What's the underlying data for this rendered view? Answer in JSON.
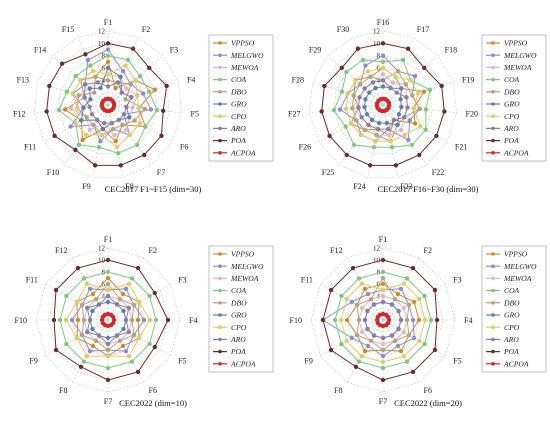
{
  "algorithms": [
    {
      "name": "VPPSO",
      "color": "#c98c34"
    },
    {
      "name": "MELGWO",
      "color": "#8c8cd2"
    },
    {
      "name": "MEWOA",
      "color": "#e4b4c9"
    },
    {
      "name": "COA",
      "color": "#7fc97f"
    },
    {
      "name": "DBO",
      "color": "#b6a27c"
    },
    {
      "name": "GRO",
      "color": "#5f7fae"
    },
    {
      "name": "CPO",
      "color": "#e0cb6c"
    },
    {
      "name": "ARO",
      "color": "#8a7fa3"
    },
    {
      "name": "POA",
      "color": "#6b2c2c"
    },
    {
      "name": "ACPOA",
      "color": "#d62727"
    }
  ],
  "chart_data": [
    {
      "type": "radar",
      "caption": "CEC2017 F1~F15 (dim=30)",
      "axes": [
        "F1",
        "F2",
        "F3",
        "F4",
        "F5",
        "F6",
        "F7",
        "F8",
        "F9",
        "F10",
        "F11",
        "F12",
        "F13",
        "F14",
        "F15"
      ],
      "rlim": [
        0,
        12
      ],
      "ticks": [
        2,
        4,
        6,
        8,
        10,
        12
      ],
      "tick_labels": [
        "",
        "4",
        "6",
        "8",
        "10",
        "12"
      ],
      "legend_position": "right",
      "series": [
        {
          "name": "VPPSO",
          "values": [
            7,
            3,
            6,
            8,
            5,
            7,
            4,
            6,
            4,
            7,
            5,
            7,
            4,
            6,
            5
          ]
        },
        {
          "name": "MELGWO",
          "values": [
            9,
            6,
            5,
            6,
            7,
            3,
            6,
            4,
            6,
            4,
            7,
            4,
            6,
            5,
            8
          ]
        },
        {
          "name": "MEWOA",
          "values": [
            5,
            5,
            4,
            5,
            4,
            4,
            5,
            5,
            3,
            5,
            4,
            6,
            5,
            4,
            4
          ]
        },
        {
          "name": "COA",
          "values": [
            8,
            8,
            7,
            7,
            8,
            7,
            8,
            8,
            7,
            8,
            6,
            8,
            7,
            7,
            7
          ]
        },
        {
          "name": "DBO",
          "values": [
            4,
            4,
            5,
            3,
            6,
            5,
            4,
            4,
            5,
            4,
            4,
            5,
            5,
            3,
            5
          ]
        },
        {
          "name": "GRO",
          "values": [
            6,
            5,
            3,
            4,
            3,
            4,
            3,
            3,
            4,
            3,
            5,
            4,
            3,
            4,
            3
          ]
        },
        {
          "name": "CPO",
          "values": [
            5,
            7,
            6,
            5,
            5,
            6,
            6,
            7,
            5,
            6,
            6,
            5,
            6,
            6,
            6
          ]
        },
        {
          "name": "ARO",
          "values": [
            3,
            4,
            3,
            4,
            3,
            3,
            3,
            3,
            3,
            3,
            3,
            3,
            4,
            5,
            4
          ]
        },
        {
          "name": "POA",
          "values": [
            10,
            10,
            9,
            10,
            9,
            10,
            10,
            10,
            10,
            9,
            10,
            10,
            10,
            10,
            9
          ]
        },
        {
          "name": "ACPOA",
          "values": [
            1,
            1,
            1,
            1,
            1,
            1,
            1,
            1,
            1,
            1,
            1,
            1,
            1,
            1,
            1
          ]
        }
      ]
    },
    {
      "type": "radar",
      "caption": "CEC2017 F16~F30 (dim=30)",
      "axes": [
        "F16",
        "F17",
        "F18",
        "F19",
        "F20",
        "F21",
        "F22",
        "F23",
        "F24",
        "F25",
        "F26",
        "F27",
        "F28",
        "F29",
        "F30"
      ],
      "rlim": [
        0,
        12
      ],
      "ticks": [
        2,
        4,
        6,
        8,
        10,
        12
      ],
      "tick_labels": [
        "",
        "4",
        "6",
        "8",
        "10",
        "12"
      ],
      "legend_position": "right",
      "series": [
        {
          "name": "VPPSO",
          "values": [
            6,
            5,
            4,
            7,
            5,
            6,
            3,
            5,
            4,
            5,
            6,
            4,
            5,
            6,
            5
          ]
        },
        {
          "name": "MELGWO",
          "values": [
            8,
            6,
            7,
            5,
            6,
            5,
            7,
            4,
            6,
            6,
            5,
            7,
            6,
            5,
            7
          ]
        },
        {
          "name": "MEWOA",
          "values": [
            5,
            4,
            5,
            4,
            4,
            4,
            5,
            5,
            5,
            4,
            4,
            5,
            4,
            4,
            4
          ]
        },
        {
          "name": "COA",
          "values": [
            7,
            8,
            6,
            8,
            7,
            8,
            8,
            7,
            7,
            8,
            7,
            8,
            7,
            8,
            8
          ]
        },
        {
          "name": "DBO",
          "values": [
            4,
            6,
            5,
            5,
            6,
            4,
            4,
            6,
            5,
            5,
            5,
            5,
            5,
            5,
            5
          ]
        },
        {
          "name": "GRO",
          "values": [
            3,
            3,
            4,
            3,
            3,
            3,
            4,
            3,
            3,
            3,
            3,
            3,
            3,
            3,
            3
          ]
        },
        {
          "name": "CPO",
          "values": [
            6,
            5,
            6,
            6,
            5,
            7,
            6,
            6,
            6,
            6,
            6,
            6,
            6,
            6,
            6
          ]
        },
        {
          "name": "ARO",
          "values": [
            4,
            3,
            3,
            4,
            4,
            4,
            3,
            4,
            4,
            4,
            4,
            4,
            4,
            4,
            4
          ]
        },
        {
          "name": "POA",
          "values": [
            10,
            10,
            9,
            10,
            10,
            10,
            10,
            10,
            10,
            10,
            10,
            10,
            10,
            9,
            10
          ]
        },
        {
          "name": "ACPOA",
          "values": [
            1,
            1,
            1,
            1,
            1,
            1,
            1,
            1,
            1,
            1,
            1,
            1,
            1,
            1,
            1
          ]
        }
      ]
    },
    {
      "type": "radar",
      "caption": "CEC2022 (dim=10)",
      "axes": [
        "F1",
        "F2",
        "F3",
        "F4",
        "F5",
        "F6",
        "F7",
        "F8",
        "F9",
        "F10",
        "F11",
        "F12"
      ],
      "rlim": [
        0,
        12
      ],
      "ticks": [
        2,
        4,
        6,
        8,
        10,
        12
      ],
      "tick_labels": [
        "",
        "4",
        "6",
        "8",
        "10",
        "12"
      ],
      "legend_position": "right",
      "series": [
        {
          "name": "VPPSO",
          "values": [
            7,
            5,
            6,
            5,
            6,
            5,
            6,
            5,
            6,
            5,
            6,
            5
          ]
        },
        {
          "name": "MELGWO",
          "values": [
            5,
            6,
            5,
            6,
            5,
            6,
            5,
            6,
            5,
            6,
            5,
            6
          ]
        },
        {
          "name": "MEWOA",
          "values": [
            4,
            4,
            4,
            4,
            4,
            4,
            4,
            4,
            4,
            4,
            4,
            4
          ]
        },
        {
          "name": "COA",
          "values": [
            8,
            8,
            8,
            8,
            8,
            8,
            8,
            8,
            8,
            8,
            8,
            8
          ]
        },
        {
          "name": "DBO",
          "values": [
            6,
            4,
            5,
            4,
            5,
            4,
            5,
            4,
            5,
            4,
            5,
            4
          ]
        },
        {
          "name": "GRO",
          "values": [
            3,
            3,
            3,
            3,
            3,
            3,
            3,
            3,
            3,
            3,
            3,
            3
          ]
        },
        {
          "name": "CPO",
          "values": [
            5,
            7,
            6,
            7,
            6,
            7,
            6,
            7,
            6,
            7,
            6,
            7
          ]
        },
        {
          "name": "ARO",
          "values": [
            4,
            3,
            4,
            3,
            4,
            3,
            4,
            3,
            4,
            3,
            4,
            3
          ]
        },
        {
          "name": "POA",
          "values": [
            10,
            10,
            9,
            10,
            9,
            10,
            10,
            9,
            10,
            9,
            10,
            10
          ]
        },
        {
          "name": "ACPOA",
          "values": [
            1,
            1,
            1,
            1,
            1,
            1,
            1,
            1,
            1,
            1,
            1,
            1
          ]
        }
      ]
    },
    {
      "type": "radar",
      "caption": "CEC2022 (dim=20)",
      "axes": [
        "F1",
        "F2",
        "F3",
        "F4",
        "F5",
        "F6",
        "F7",
        "F8",
        "F9",
        "F10",
        "F11",
        "F12"
      ],
      "rlim": [
        0,
        12
      ],
      "ticks": [
        2,
        4,
        6,
        8,
        10,
        12
      ],
      "tick_labels": [
        "",
        "4",
        "6",
        "8",
        "10",
        "12"
      ],
      "legend_position": "right",
      "series": [
        {
          "name": "VPPSO",
          "values": [
            6,
            5,
            6,
            6,
            5,
            6,
            5,
            6,
            5,
            6,
            5,
            6
          ]
        },
        {
          "name": "MELGWO",
          "values": [
            5,
            6,
            5,
            5,
            6,
            5,
            6,
            5,
            6,
            10,
            6,
            5
          ]
        },
        {
          "name": "MEWOA",
          "values": [
            4,
            4,
            4,
            4,
            4,
            4,
            4,
            4,
            4,
            4,
            4,
            4
          ]
        },
        {
          "name": "COA",
          "values": [
            8,
            8,
            8,
            8,
            8,
            8,
            8,
            8,
            8,
            8,
            8,
            8
          ]
        },
        {
          "name": "DBO",
          "values": [
            7,
            4,
            5,
            4,
            5,
            4,
            5,
            4,
            5,
            4,
            5,
            4
          ]
        },
        {
          "name": "GRO",
          "values": [
            3,
            3,
            3,
            3,
            3,
            3,
            3,
            3,
            3,
            3,
            3,
            3
          ]
        },
        {
          "name": "CPO",
          "values": [
            5,
            7,
            7,
            7,
            7,
            7,
            7,
            7,
            7,
            7,
            7,
            7
          ]
        },
        {
          "name": "ARO",
          "values": [
            3,
            3,
            3,
            3,
            3,
            3,
            3,
            3,
            3,
            3,
            3,
            3
          ]
        },
        {
          "name": "POA",
          "values": [
            10,
            10,
            10,
            9,
            10,
            10,
            10,
            9,
            10,
            10,
            10,
            10
          ]
        },
        {
          "name": "ACPOA",
          "values": [
            1,
            1,
            1,
            1,
            1,
            1,
            1,
            1,
            1,
            1,
            1,
            1
          ]
        }
      ]
    }
  ]
}
